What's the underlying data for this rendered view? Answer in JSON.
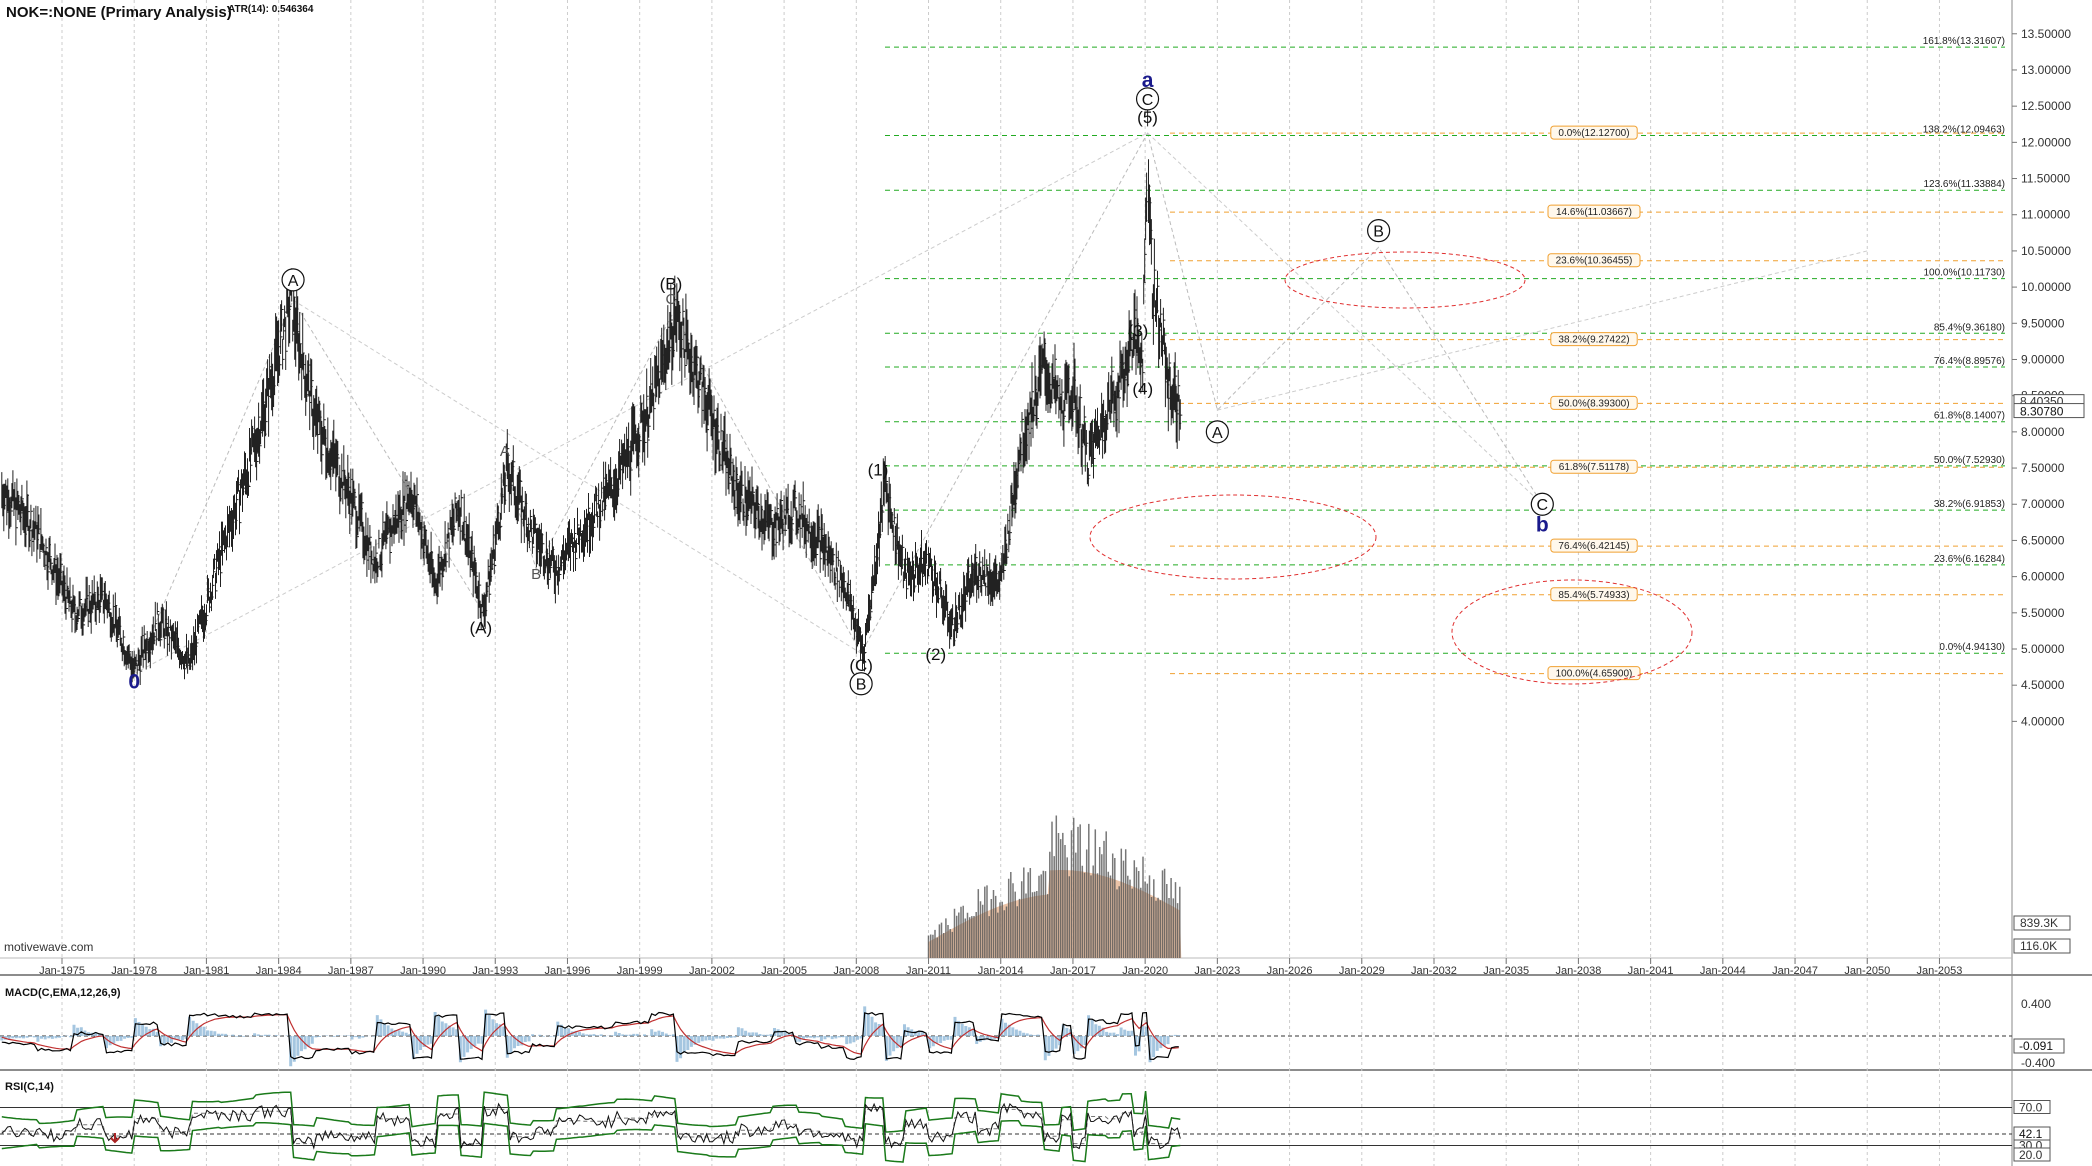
{
  "header": {
    "symbol_title": "NOK=:NONE (Primary Analysis)",
    "indicator": "ATR(14): 0.546364",
    "watermark": "motivewave.com"
  },
  "colors": {
    "price_bar": "#222222",
    "green_fib": "#22aa22",
    "orange_fib": "#f0a030",
    "wave_navy": "#1a1a8c",
    "ellipse": "#e03030",
    "volume_fill": "#e8b898",
    "volume_bar": "#555555",
    "macd_line": "#000000",
    "macd_signal": "#c03030",
    "macd_hist": "#8fb8d8",
    "rsi_line": "#111111",
    "rsi_band": "#1a7a1a"
  },
  "chart_data": [
    {
      "type": "line",
      "name": "price",
      "x_ticks": [
        "Jan-1975",
        "Jan-1978",
        "Jan-1981",
        "Jan-1984",
        "Jan-1987",
        "Jan-1990",
        "Jan-1993",
        "Jan-1996",
        "Jan-1999",
        "Jan-2002",
        "Jan-2005",
        "Jan-2008",
        "Jan-2011",
        "Jan-2014",
        "Jan-2017",
        "Jan-2020",
        "Jan-2023",
        "Jan-2026",
        "Jan-2029",
        "Jan-2032",
        "Jan-2035",
        "Jan-2038",
        "Jan-2041",
        "Jan-2044",
        "Jan-2047",
        "Jan-2050",
        "Jan-2053"
      ],
      "y_ticks": [
        "13.50000",
        "13.00000",
        "12.50000",
        "12.00000",
        "11.50000",
        "11.00000",
        "10.50000",
        "10.00000",
        "9.50000",
        "9.00000",
        "8.50000",
        "8.00000",
        "7.50000",
        "7.00000",
        "6.50000",
        "6.00000",
        "5.50000",
        "5.00000",
        "4.50000",
        "4.00000"
      ],
      "ylim": [
        3.6,
        13.7
      ],
      "last_price": "8.30780",
      "last_price_alt": "8.40350",
      "volume_labels": [
        "839.3K",
        "116.0K"
      ],
      "series": [
        {
          "x": [
            1972.5,
            1974,
            1975.5,
            1976.8,
            1978,
            1979,
            1980.3,
            1981.5,
            1983,
            1984.5,
            1985.5,
            1987,
            1988,
            1989.5,
            1990.5,
            1991.5,
            1992.5,
            1993.5,
            1994.5,
            1995.5,
            1996.5,
            1998,
            1999.5,
            2000.5,
            2001.8,
            2003,
            2004.5,
            2005.5,
            2006.5,
            2007.5,
            2008.3,
            2008.8,
            2009.2,
            2010,
            2011,
            2012,
            2013,
            2014,
            2014.8,
            2015.8,
            2016.5,
            2017,
            2017.6,
            2018.4,
            2019,
            2019.5,
            2019.9,
            2020.1,
            2020.3,
            2020.6,
            2021,
            2021.5
          ],
          "values": [
            7.2,
            6.6,
            5.5,
            5.7,
            4.7,
            5.4,
            4.8,
            6.2,
            7.8,
            9.8,
            8.2,
            7.1,
            6.2,
            7.2,
            5.9,
            7.0,
            5.5,
            7.5,
            6.6,
            6.1,
            6.6,
            7.3,
            8.4,
            9.6,
            8.4,
            7.2,
            6.7,
            6.9,
            6.5,
            5.9,
            4.94,
            6.2,
            7.3,
            6.0,
            6.2,
            5.3,
            6.1,
            5.9,
            7.8,
            8.9,
            8.3,
            8.6,
            7.6,
            8.3,
            8.7,
            9.3,
            9.1,
            12.127,
            10.0,
            9.5,
            8.6,
            8.31
          ]
        }
      ]
    },
    {
      "type": "line",
      "name": "MACD(C,EMA,12,26,9)",
      "y_ticks": [
        "0.400",
        "-0.400"
      ],
      "current": "-0.091"
    },
    {
      "type": "line",
      "name": "RSI(C,14)",
      "y_ticks": [
        "70.0",
        "30.0",
        "20.0"
      ],
      "current": "42.1"
    }
  ],
  "fib_green": [
    {
      "v": 13.3161,
      "label": "161.8%(13.31607)"
    },
    {
      "v": 12.0946,
      "label": "138.2%(12.09463)"
    },
    {
      "v": 11.3388,
      "label": "123.6%(11.33884)"
    },
    {
      "v": 10.1173,
      "label": "100.0%(10.11730)"
    },
    {
      "v": 9.3618,
      "label": "85.4%(9.36180)"
    },
    {
      "v": 8.8958,
      "label": "76.4%(8.89576)"
    },
    {
      "v": 8.1401,
      "label": "61.8%(8.14007)"
    },
    {
      "v": 7.5293,
      "label": "50.0%(7.52930)"
    },
    {
      "v": 6.9185,
      "label": "38.2%(6.91853)"
    },
    {
      "v": 6.1628,
      "label": "23.6%(6.16284)"
    },
    {
      "v": 4.9413,
      "label": "0.0%(4.94130)"
    }
  ],
  "fib_orange": [
    {
      "v": 12.127,
      "label": "0.0%(12.12700)"
    },
    {
      "v": 11.0367,
      "label": "14.6%(11.03667)"
    },
    {
      "v": 10.3646,
      "label": "23.6%(10.36455)"
    },
    {
      "v": 9.2742,
      "label": "38.2%(9.27422)"
    },
    {
      "v": 8.393,
      "label": "50.0%(8.39300)"
    },
    {
      "v": 7.5118,
      "label": "61.8%(7.51178)"
    },
    {
      "v": 6.4215,
      "label": "76.4%(6.42145)"
    },
    {
      "v": 5.7493,
      "label": "85.4%(5.74933)"
    },
    {
      "v": 4.659,
      "label": "100.0%(4.65900)"
    }
  ],
  "waves": [
    {
      "t": "0",
      "x": 1978.0,
      "v": 4.55,
      "style": "navy"
    },
    {
      "t": "A",
      "x": 1984.6,
      "v": 10.1,
      "style": "circle"
    },
    {
      "t": "A",
      "x": 1993.4,
      "v": 7.75,
      "style": "plain"
    },
    {
      "t": "(A)",
      "x": 1992.4,
      "v": 5.3,
      "style": "paren"
    },
    {
      "t": "B",
      "x": 1994.7,
      "v": 6.05,
      "style": "plain"
    },
    {
      "t": "(B)",
      "x": 2000.3,
      "v": 10.05,
      "style": "paren"
    },
    {
      "t": "C",
      "x": 2000.3,
      "v": 9.85,
      "style": "plain"
    },
    {
      "t": "(C)",
      "x": 2008.2,
      "v": 4.78,
      "style": "paren"
    },
    {
      "t": "B",
      "x": 2008.2,
      "v": 4.52,
      "style": "circle"
    },
    {
      "t": "(1)",
      "x": 2008.9,
      "v": 7.48,
      "style": "paren"
    },
    {
      "t": "(2)",
      "x": 2011.3,
      "v": 4.93,
      "style": "paren"
    },
    {
      "t": "(3)",
      "x": 2019.7,
      "v": 9.4,
      "style": "paren"
    },
    {
      "t": "(4)",
      "x": 2019.9,
      "v": 8.6,
      "style": "paren"
    },
    {
      "t": "(5)",
      "x": 2020.1,
      "v": 12.35,
      "style": "paren"
    },
    {
      "t": "C",
      "x": 2020.1,
      "v": 12.6,
      "style": "circle"
    },
    {
      "t": "a",
      "x": 2020.1,
      "v": 12.86,
      "style": "navy"
    },
    {
      "t": "B",
      "x": 2029.7,
      "v": 10.78,
      "style": "circle"
    },
    {
      "t": "A",
      "x": 2023.0,
      "v": 8.0,
      "style": "circle"
    },
    {
      "t": "C",
      "x": 2036.5,
      "v": 7.0,
      "style": "circle"
    },
    {
      "t": "b",
      "x": 2036.5,
      "v": 6.72,
      "style": "navy"
    }
  ]
}
